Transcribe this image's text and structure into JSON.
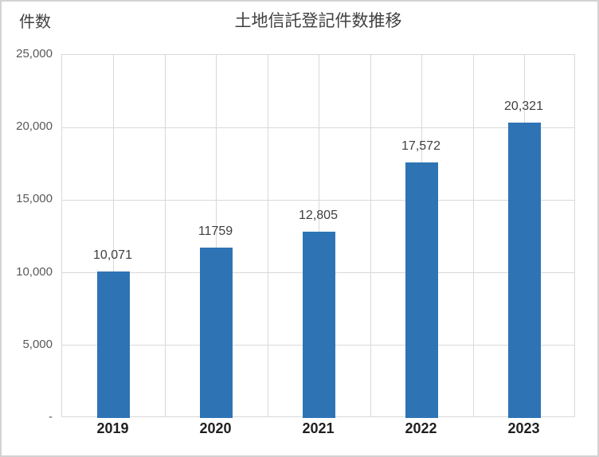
{
  "chart_data": {
    "type": "bar",
    "title": "土地信託登記件数推移",
    "ylabel": "件数",
    "xlabel": "",
    "categories": [
      "2019",
      "2020",
      "2021",
      "2022",
      "2023"
    ],
    "series": [
      {
        "name": "件数",
        "values": [
          10071,
          11759,
          12805,
          17572,
          20321
        ]
      }
    ],
    "data_labels": [
      "10,071",
      "11759",
      "12,805",
      "17,572",
      "20,321"
    ],
    "ylim": [
      0,
      25000
    ],
    "y_tick_values": [
      0,
      5000,
      10000,
      15000,
      20000,
      25000
    ],
    "y_tick_labels": [
      "-",
      "5,000",
      "10,000",
      "15,000",
      "20,000",
      "25,000"
    ],
    "grid": "on",
    "legend": "none",
    "colors": {
      "bar": "#2E74B5",
      "gridline": "#D9D9D9",
      "plot_border": "#D9D9D9",
      "frame_border": "#D2D2D2",
      "title_text": "#404040",
      "y_tick_text": "#595959",
      "x_tick_text": "#1F1F1F",
      "data_label_text": "#404040"
    }
  }
}
